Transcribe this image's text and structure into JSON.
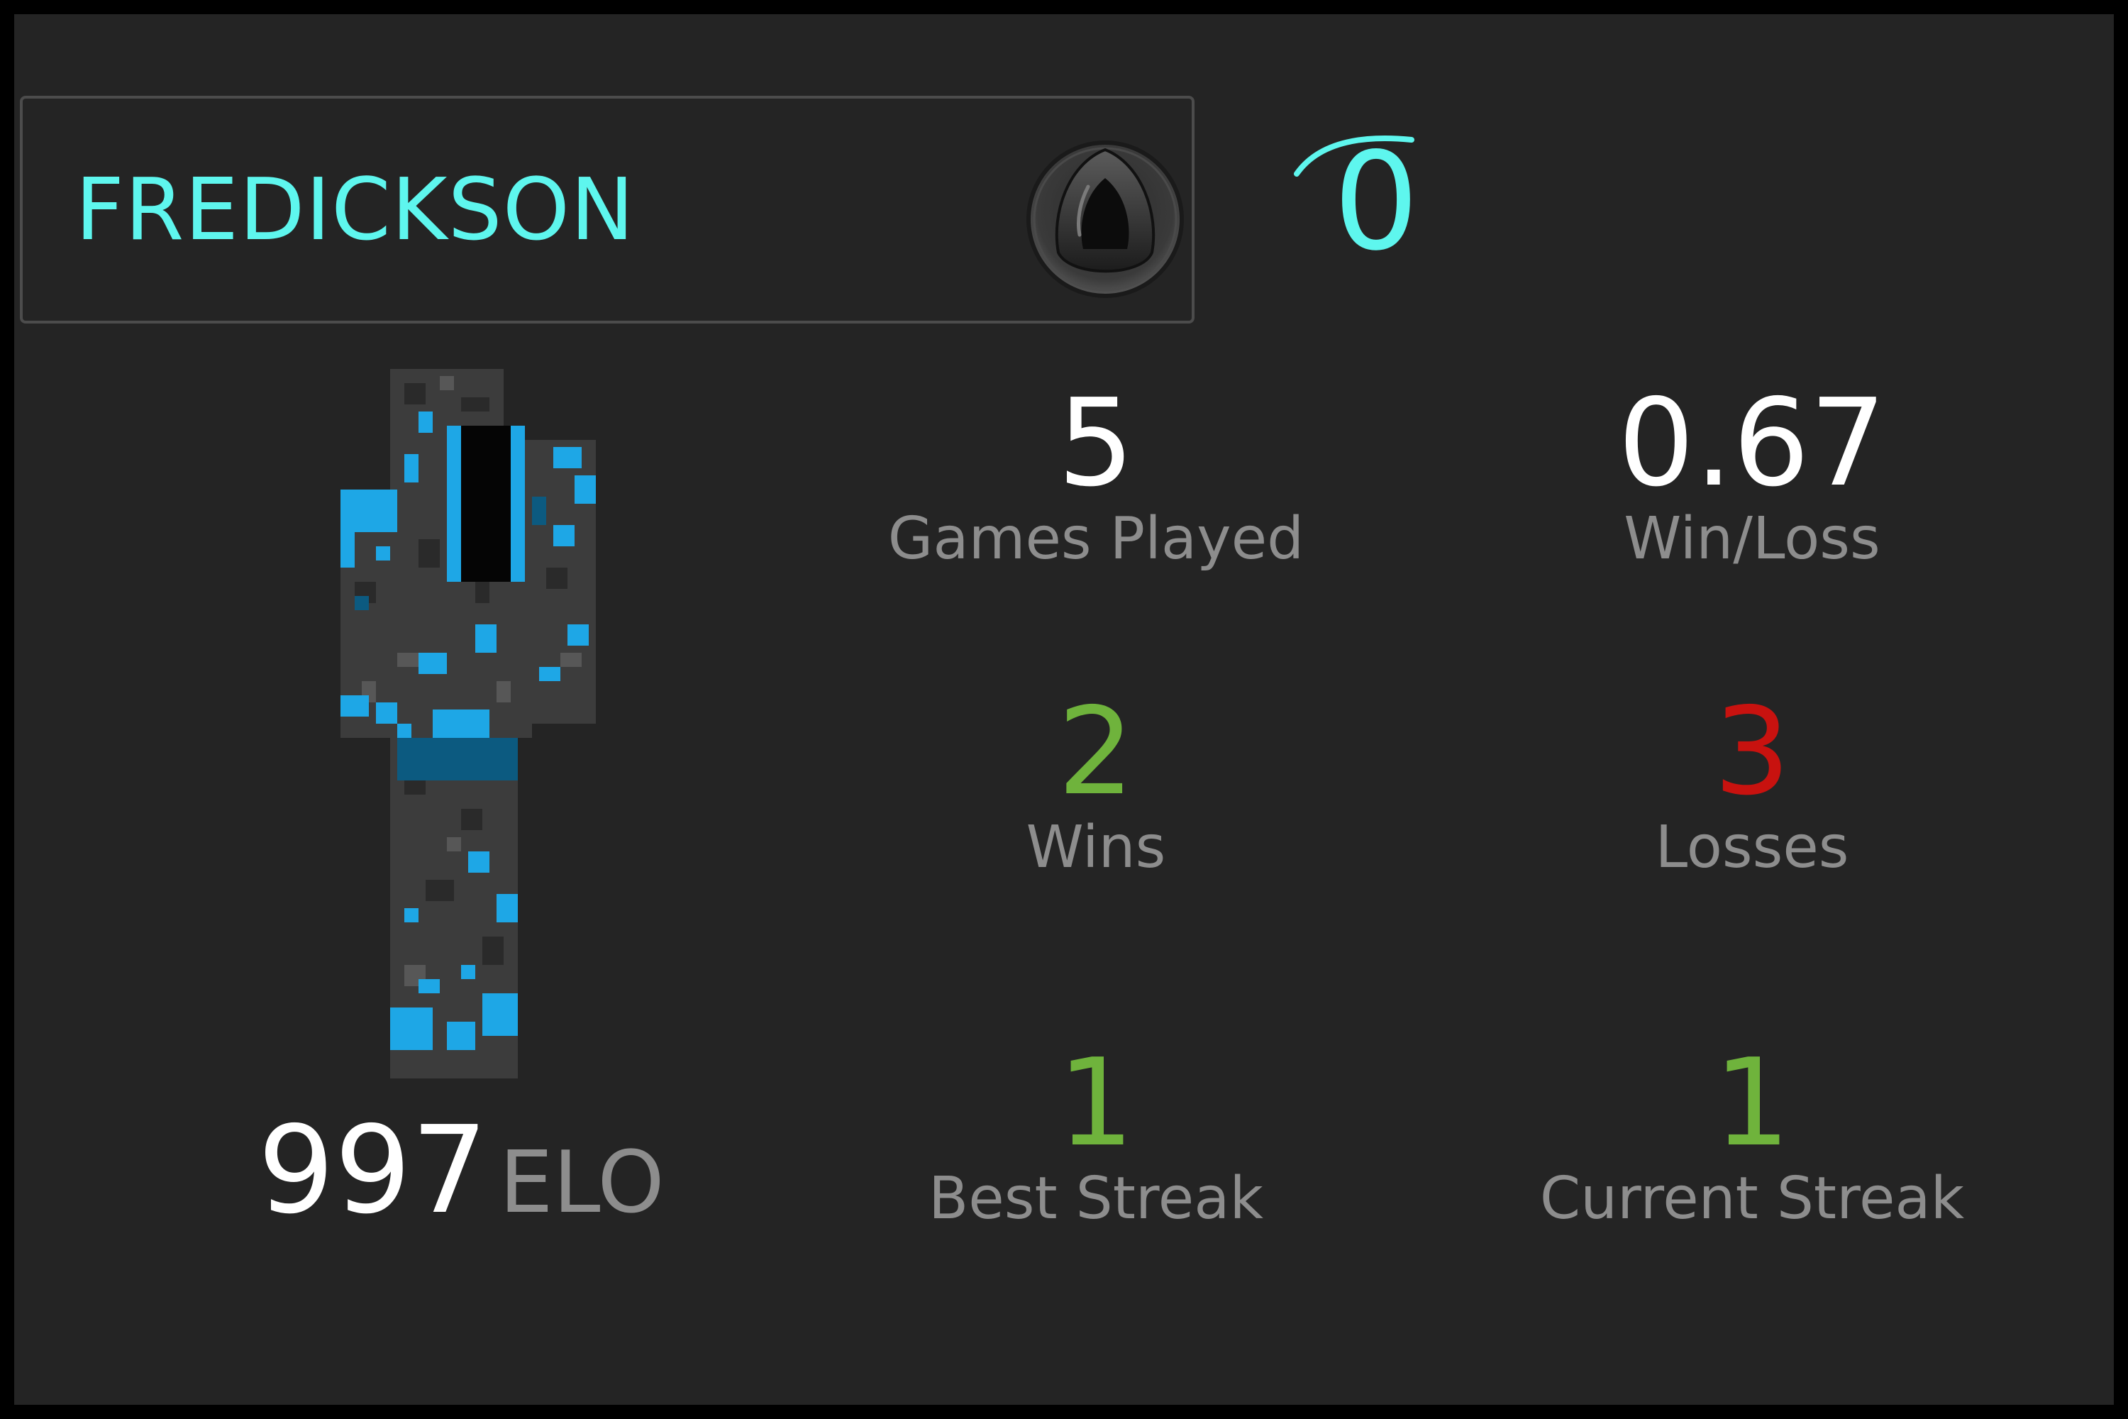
{
  "player": {
    "name": "FREDICKSON",
    "rank_number": "0",
    "rank_badge_icon": "black-gem-icon",
    "skin": "blue-hooded-character-skin"
  },
  "elo": {
    "value": "997",
    "unit": "ELO"
  },
  "stats": {
    "games_played": {
      "value": "5",
      "label": "Games Played"
    },
    "win_loss": {
      "value": "0.67",
      "label": "Win/Loss"
    },
    "wins": {
      "value": "2",
      "label": "Wins"
    },
    "losses": {
      "value": "3",
      "label": "Losses"
    },
    "best_streak": {
      "value": "1",
      "label": "Best Streak"
    },
    "current_streak": {
      "value": "1",
      "label": "Current Streak"
    }
  },
  "colors": {
    "background": "#242424",
    "accent": "#5ef6ee",
    "value_white": "#ffffff",
    "label_gray": "#8d8d8d",
    "positive_green": "#6fb33c",
    "negative_red": "#c8120f"
  }
}
